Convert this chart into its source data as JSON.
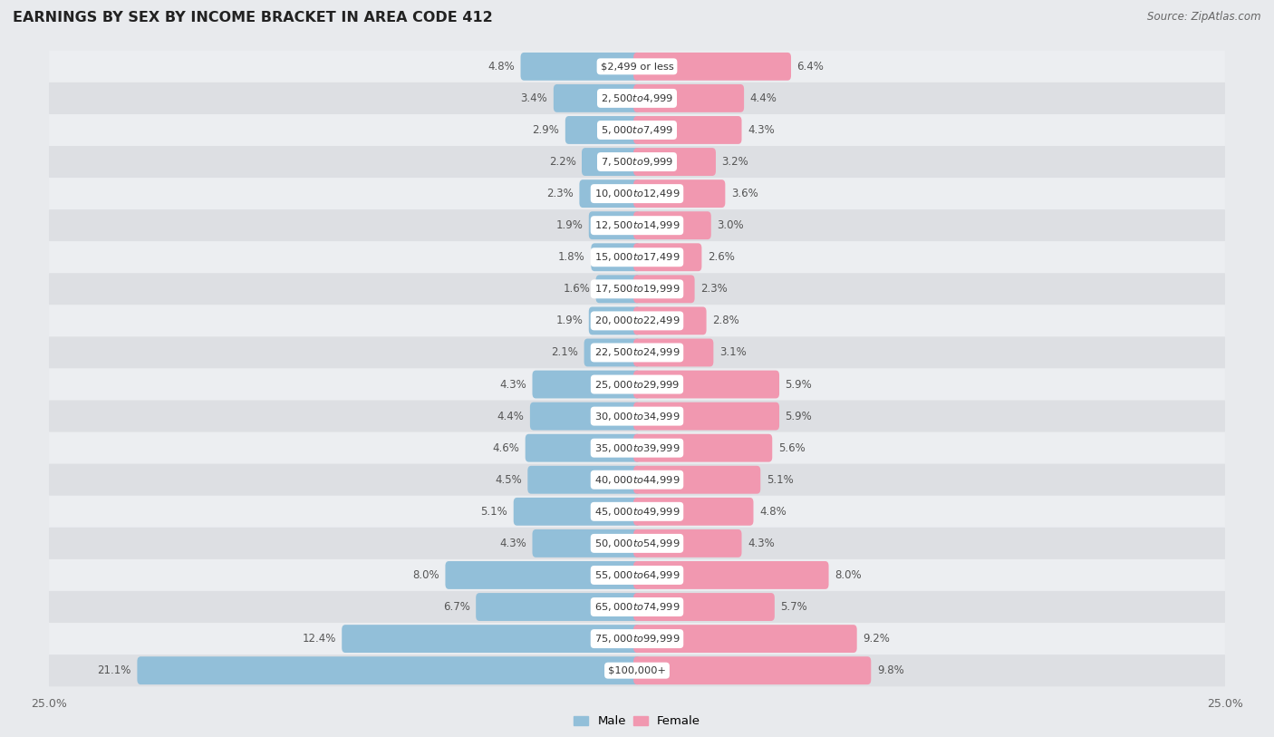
{
  "title": "EARNINGS BY SEX BY INCOME BRACKET IN AREA CODE 412",
  "source": "Source: ZipAtlas.com",
  "male_color": "#92bfd9",
  "female_color": "#f198b0",
  "male_label": "Male",
  "female_label": "Female",
  "background_color": "#e8eaed",
  "row_color_odd": "#dddfe3",
  "row_color_even": "#eceef1",
  "xlim": 25.0,
  "categories": [
    "$2,499 or less",
    "$2,500 to $4,999",
    "$5,000 to $7,499",
    "$7,500 to $9,999",
    "$10,000 to $12,499",
    "$12,500 to $14,999",
    "$15,000 to $17,499",
    "$17,500 to $19,999",
    "$20,000 to $22,499",
    "$22,500 to $24,999",
    "$25,000 to $29,999",
    "$30,000 to $34,999",
    "$35,000 to $39,999",
    "$40,000 to $44,999",
    "$45,000 to $49,999",
    "$50,000 to $54,999",
    "$55,000 to $64,999",
    "$65,000 to $74,999",
    "$75,000 to $99,999",
    "$100,000+"
  ],
  "male_values": [
    4.8,
    3.4,
    2.9,
    2.2,
    2.3,
    1.9,
    1.8,
    1.6,
    1.9,
    2.1,
    4.3,
    4.4,
    4.6,
    4.5,
    5.1,
    4.3,
    8.0,
    6.7,
    12.4,
    21.1
  ],
  "female_values": [
    6.4,
    4.4,
    4.3,
    3.2,
    3.6,
    3.0,
    2.6,
    2.3,
    2.8,
    3.1,
    5.9,
    5.9,
    5.6,
    5.1,
    4.8,
    4.3,
    8.0,
    5.7,
    9.2,
    9.8
  ]
}
